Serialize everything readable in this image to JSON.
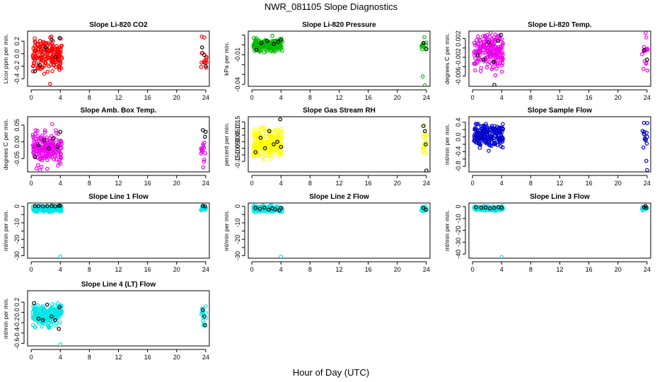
{
  "figure": {
    "title": "NWR_081105  Slope Diagnostics",
    "xlabel": "Hour of Day (UTC)"
  },
  "chart_data": [
    {
      "type": "scatter",
      "title": "Slope Li-820 CO2",
      "ylabel": "Licor ppm per min.",
      "color": "#ff0000",
      "xticks": [
        0,
        4,
        8,
        12,
        16,
        20,
        24
      ],
      "xlim": [
        -0.5,
        24.5
      ],
      "ylim": [
        -0.52,
        0.36
      ],
      "yticks": [
        -0.4,
        -0.2,
        0.0,
        0.2
      ],
      "ytick_labels": [
        "-0.4",
        "-0.2",
        "0.0",
        "0.2"
      ],
      "cluster": {
        "morning": [
          0.2,
          4.2
        ],
        "evening": [
          23.3,
          24.1
        ],
        "center": -0.02,
        "spread": 0.22,
        "outliers": [
          [
            2.6,
            -0.48
          ]
        ]
      },
      "black_points": [
        [
          0.5,
          -0.28
        ],
        [
          1.2,
          -0.18
        ],
        [
          2.0,
          0.1
        ],
        [
          2.8,
          0.22
        ],
        [
          3.4,
          -0.05
        ],
        [
          3.9,
          0.25
        ],
        [
          23.5,
          0.1
        ],
        [
          23.8,
          -0.02
        ],
        [
          24.0,
          -0.2
        ]
      ]
    },
    {
      "type": "scatter",
      "title": "Slope Li-820 Pressure",
      "ylabel": "kPa per min.",
      "color": "#00bb00",
      "xticks": [
        0,
        4,
        8,
        12,
        16,
        20,
        24
      ],
      "xlim": [
        -0.5,
        24.5
      ],
      "ylim": [
        -0.042,
        0.014
      ],
      "yticks": [
        -0.04,
        -0.03,
        -0.02,
        -0.01,
        0.0,
        0.01
      ],
      "ytick_labels": [
        "-0.04",
        "",
        "",
        "-0.01",
        "",
        ""
      ],
      "cluster": {
        "morning": [
          0.2,
          4.2
        ],
        "evening": [
          23.3,
          24.1
        ],
        "center": 0.0,
        "spread": 0.006,
        "outliers": [
          [
            23.8,
            -0.041
          ],
          [
            23.5,
            -0.032
          ]
        ]
      },
      "black_points": [
        [
          0.6,
          -0.005
        ],
        [
          1.3,
          0.002
        ],
        [
          2.1,
          0.004
        ],
        [
          3.0,
          0.001
        ],
        [
          3.6,
          0.003
        ],
        [
          4.0,
          0.005
        ],
        [
          23.6,
          0.002
        ],
        [
          24.0,
          -0.004
        ]
      ]
    },
    {
      "type": "scatter",
      "title": "Slope Li-820 Temp.",
      "ylabel": "degrees C per min.",
      "color": "#ee00ee",
      "xticks": [
        0,
        4,
        8,
        12,
        16,
        20,
        24
      ],
      "xlim": [
        -0.5,
        24.5
      ],
      "ylim": [
        -0.0082,
        0.0036
      ],
      "yticks": [
        -0.006,
        -0.004,
        -0.002,
        0.0,
        0.002
      ],
      "ytick_labels": [
        "-0.006",
        "",
        "-0.002",
        "",
        "0.002"
      ],
      "cluster": {
        "morning": [
          0.2,
          4.2
        ],
        "evening": [
          23.3,
          24.1
        ],
        "center": -0.001,
        "spread": 0.0035,
        "outliers": [
          [
            23.8,
            0.0032
          ]
        ]
      },
      "black_points": [
        [
          0.7,
          -0.0015
        ],
        [
          1.5,
          -0.0025
        ],
        [
          2.2,
          0.0012
        ],
        [
          2.9,
          -0.003
        ],
        [
          3.5,
          0.0015
        ],
        [
          3.9,
          0.0028
        ],
        [
          3.0,
          -0.0079
        ],
        [
          23.6,
          -0.0005
        ],
        [
          24.0,
          -0.0025
        ]
      ]
    },
    {
      "type": "scatter",
      "title": "Slope Amb. Box Temp.",
      "ylabel": "degrees C per min.",
      "color": "#ee00ee",
      "xticks": [
        0,
        4,
        8,
        12,
        16,
        20,
        24
      ],
      "xlim": [
        -0.5,
        24.5
      ],
      "ylim": [
        -0.09,
        0.075
      ],
      "yticks": [
        -0.05,
        0.0,
        0.05
      ],
      "ytick_labels": [
        "-0.05",
        "0.00",
        "0.05"
      ],
      "cluster": {
        "morning": [
          0.2,
          4.2
        ],
        "evening": [
          23.3,
          24.1
        ],
        "center": -0.02,
        "spread": 0.045,
        "outliers": [
          [
            1.2,
            -0.085
          ]
        ]
      },
      "black_points": [
        [
          0.5,
          -0.045
        ],
        [
          1.0,
          -0.01
        ],
        [
          1.8,
          0.005
        ],
        [
          2.4,
          -0.02
        ],
        [
          3.0,
          0.01
        ],
        [
          3.6,
          -0.015
        ],
        [
          4.0,
          0.03
        ],
        [
          23.6,
          0.035
        ],
        [
          23.9,
          0.015
        ],
        [
          24.0,
          0.03
        ]
      ]
    },
    {
      "type": "scatter",
      "title": "Slope Gas Stream RH",
      "ylabel": "percent per min.",
      "color": "#ffff00",
      "xticks": [
        0,
        4,
        8,
        12,
        16,
        20,
        24
      ],
      "xlim": [
        -0.5,
        24.5
      ],
      "ylim": [
        -0.23,
        0.19
      ],
      "yticks": [
        -0.15,
        -0.1,
        -0.05,
        0.0,
        0.05,
        0.1,
        0.15
      ],
      "ytick_labels": [
        "-0.15",
        "-0.10",
        "-0.05",
        "0.00",
        "0.05",
        "0.10",
        "0.15"
      ],
      "cluster": {
        "morning": [
          0.2,
          4.2
        ],
        "evening": [
          23.3,
          24.1
        ],
        "center": -0.01,
        "spread": 0.09,
        "outliers": []
      },
      "black_points": [
        [
          0.5,
          -0.08
        ],
        [
          1.2,
          0.03
        ],
        [
          1.8,
          -0.05
        ],
        [
          2.4,
          0.08
        ],
        [
          3.0,
          -0.02
        ],
        [
          3.5,
          0.0
        ],
        [
          3.9,
          0.17
        ],
        [
          4.0,
          -0.04
        ],
        [
          23.6,
          0.12
        ],
        [
          23.8,
          0.08
        ],
        [
          23.9,
          -0.02
        ],
        [
          24.0,
          -0.22
        ]
      ]
    },
    {
      "type": "scatter",
      "title": "Slope Sample Flow",
      "ylabel": "ml/min per min.",
      "color": "#0000cc",
      "xticks": [
        0,
        4,
        8,
        12,
        16,
        20,
        24
      ],
      "xlim": [
        -0.5,
        24.5
      ],
      "ylim": [
        -0.95,
        0.55
      ],
      "yticks": [
        -0.8,
        -0.6,
        -0.4,
        -0.2,
        0.0,
        0.2,
        0.4
      ],
      "ytick_labels": [
        "-0.8",
        "",
        "-0.4",
        "",
        "0.0",
        "",
        "0.4"
      ],
      "cluster": {
        "morning": [
          0.2,
          4.2
        ],
        "evening": [
          23.3,
          24.1
        ],
        "center": 0.05,
        "spread": 0.28,
        "outliers": [
          [
            23.9,
            -0.65
          ],
          [
            24.0,
            -0.9
          ]
        ]
      },
      "black_points": []
    },
    {
      "type": "scatter",
      "title": "Slope Line 1 Flow",
      "ylabel": "ml/min per min.",
      "color": "#00e5e5",
      "xticks": [
        0,
        4,
        8,
        12,
        16,
        20,
        24
      ],
      "xlim": [
        -0.5,
        24.5
      ],
      "ylim": [
        -31.5,
        2.0
      ],
      "yticks": [
        -30,
        -25,
        -20,
        -15,
        -10,
        -5,
        0
      ],
      "ytick_labels": [
        "-30",
        "",
        "-20",
        "",
        "-10",
        "",
        "0"
      ],
      "cluster": {
        "morning": [
          0.2,
          4.2
        ],
        "evening": [
          23.3,
          24.1
        ],
        "center": -1.5,
        "spread": 1.5,
        "outliers": [
          [
            4.0,
            -30.5
          ]
        ]
      },
      "black_points": [
        [
          0.5,
          0.2
        ],
        [
          1.0,
          0.1
        ],
        [
          1.6,
          0.0
        ],
        [
          2.2,
          0.1
        ],
        [
          2.8,
          0.2
        ],
        [
          3.3,
          0.0
        ],
        [
          3.8,
          0.3
        ],
        [
          4.0,
          0.4
        ],
        [
          23.6,
          0.3
        ],
        [
          23.9,
          0.0
        ]
      ]
    },
    {
      "type": "scatter",
      "title": "Slope Line 2 Flow",
      "ylabel": "ml/min per min.",
      "color": "#00e5e5",
      "xticks": [
        0,
        4,
        8,
        12,
        16,
        20,
        24
      ],
      "xlim": [
        -0.5,
        24.5
      ],
      "ylim": [
        -31.5,
        2.0
      ],
      "yticks": [
        -30,
        -25,
        -20,
        -15,
        -10,
        -5,
        0
      ],
      "ytick_labels": [
        "-30",
        "",
        "-20",
        "",
        "-10",
        "",
        "0"
      ],
      "cluster": {
        "morning": [
          0.2,
          4.2
        ],
        "evening": [
          23.3,
          24.1
        ],
        "center": -1.5,
        "spread": 1.5,
        "outliers": [
          [
            4.0,
            -30.5
          ]
        ]
      },
      "black_points": [
        [
          0.5,
          -1.0
        ],
        [
          1.1,
          -1.5
        ],
        [
          1.7,
          -0.8
        ],
        [
          2.3,
          -2.0
        ],
        [
          2.8,
          -1.2
        ],
        [
          3.2,
          -1.8
        ],
        [
          3.8,
          -2.4
        ],
        [
          4.0,
          -1.0
        ],
        [
          23.6,
          -1.0
        ],
        [
          23.9,
          -2.0
        ]
      ]
    },
    {
      "type": "scatter",
      "title": "Slope Line 3 Flow",
      "ylabel": "ml/min per min.",
      "color": "#00e5e5",
      "xticks": [
        0,
        4,
        8,
        12,
        16,
        20,
        24
      ],
      "xlim": [
        -0.5,
        24.5
      ],
      "ylim": [
        -43.5,
        3.0
      ],
      "yticks": [
        -40,
        -30,
        -20,
        -10,
        0
      ],
      "ytick_labels": [
        "-40",
        "-30",
        "-20",
        "-10",
        "0"
      ],
      "cluster": {
        "morning": [
          0.2,
          4.2
        ],
        "evening": [
          23.3,
          24.1
        ],
        "center": -1.5,
        "spread": 1.5,
        "outliers": [
          [
            4.0,
            -42.5
          ]
        ]
      },
      "black_points": [
        [
          0.5,
          -0.5
        ],
        [
          1.2,
          -1.0
        ],
        [
          1.8,
          -0.8
        ],
        [
          2.4,
          -1.5
        ],
        [
          3.0,
          -1.2
        ],
        [
          3.6,
          -0.5
        ],
        [
          4.0,
          -1.0
        ],
        [
          23.6,
          -0.5
        ],
        [
          23.8,
          0.5
        ],
        [
          23.9,
          -1.0
        ]
      ]
    },
    {
      "type": "scatter",
      "title": "Slope Line 4 (LT) Flow",
      "ylabel": "ml/min per min.",
      "color": "#00e5e5",
      "xticks": [
        0,
        4,
        8,
        12,
        16,
        20,
        24
      ],
      "xlim": [
        -0.5,
        24.5
      ],
      "ylim": [
        -0.65,
        0.42
      ],
      "yticks": [
        -0.6,
        -0.4,
        -0.2,
        0.0,
        0.2
      ],
      "ytick_labels": [
        "-0.6",
        "-0.4",
        "-0.2",
        "0.0",
        "0.2"
      ],
      "cluster": {
        "morning": [
          0.2,
          4.2
        ],
        "evening": [
          23.3,
          24.1
        ],
        "center": -0.05,
        "spread": 0.18,
        "outliers": [
          [
            4.0,
            -0.62
          ]
        ]
      },
      "black_points": [
        [
          0.4,
          0.18
        ],
        [
          1.0,
          -0.12
        ],
        [
          1.6,
          -0.15
        ],
        [
          2.2,
          0.15
        ],
        [
          2.8,
          -0.08
        ],
        [
          3.3,
          -0.15
        ],
        [
          3.8,
          -0.32
        ],
        [
          3.9,
          0.1
        ],
        [
          23.6,
          0.05
        ],
        [
          23.8,
          -0.08
        ],
        [
          23.9,
          -0.25
        ]
      ]
    }
  ]
}
